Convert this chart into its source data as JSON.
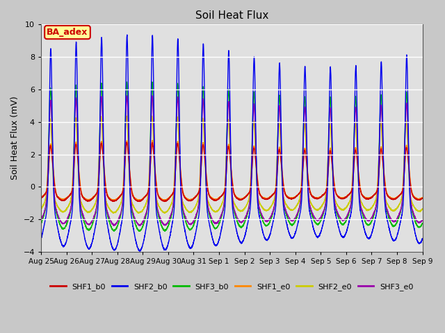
{
  "title": "Soil Heat Flux",
  "ylabel": "Soil Heat Flux (mV)",
  "ylim": [
    -4,
    10
  ],
  "yticks": [
    -4,
    -2,
    0,
    2,
    4,
    6,
    8,
    10
  ],
  "date_labels": [
    "Aug 25",
    "Aug 26",
    "Aug 27",
    "Aug 28",
    "Aug 29",
    "Aug 30",
    "Aug 31",
    "Sep 1",
    "Sep 2",
    "Sep 3",
    "Sep 4",
    "Sep 5",
    "Sep 6",
    "Sep 7",
    "Sep 8",
    "Sep 9"
  ],
  "legend_labels": [
    "SHF1_b0",
    "SHF2_b0",
    "SHF3_b0",
    "SHF1_e0",
    "SHF2_e0",
    "SHF3_e0"
  ],
  "legend_colors": [
    "#cc0000",
    "#0000ee",
    "#00bb00",
    "#ff8800",
    "#cccc00",
    "#9900aa"
  ],
  "box_label": "BA_adex",
  "box_facecolor": "#ffff99",
  "box_edgecolor": "#cc0000",
  "box_textcolor": "#cc0000",
  "background_color": "#c8c8c8",
  "plot_bg_color": "#e0e0e0",
  "n_days": 15,
  "samples_per_day": 288
}
